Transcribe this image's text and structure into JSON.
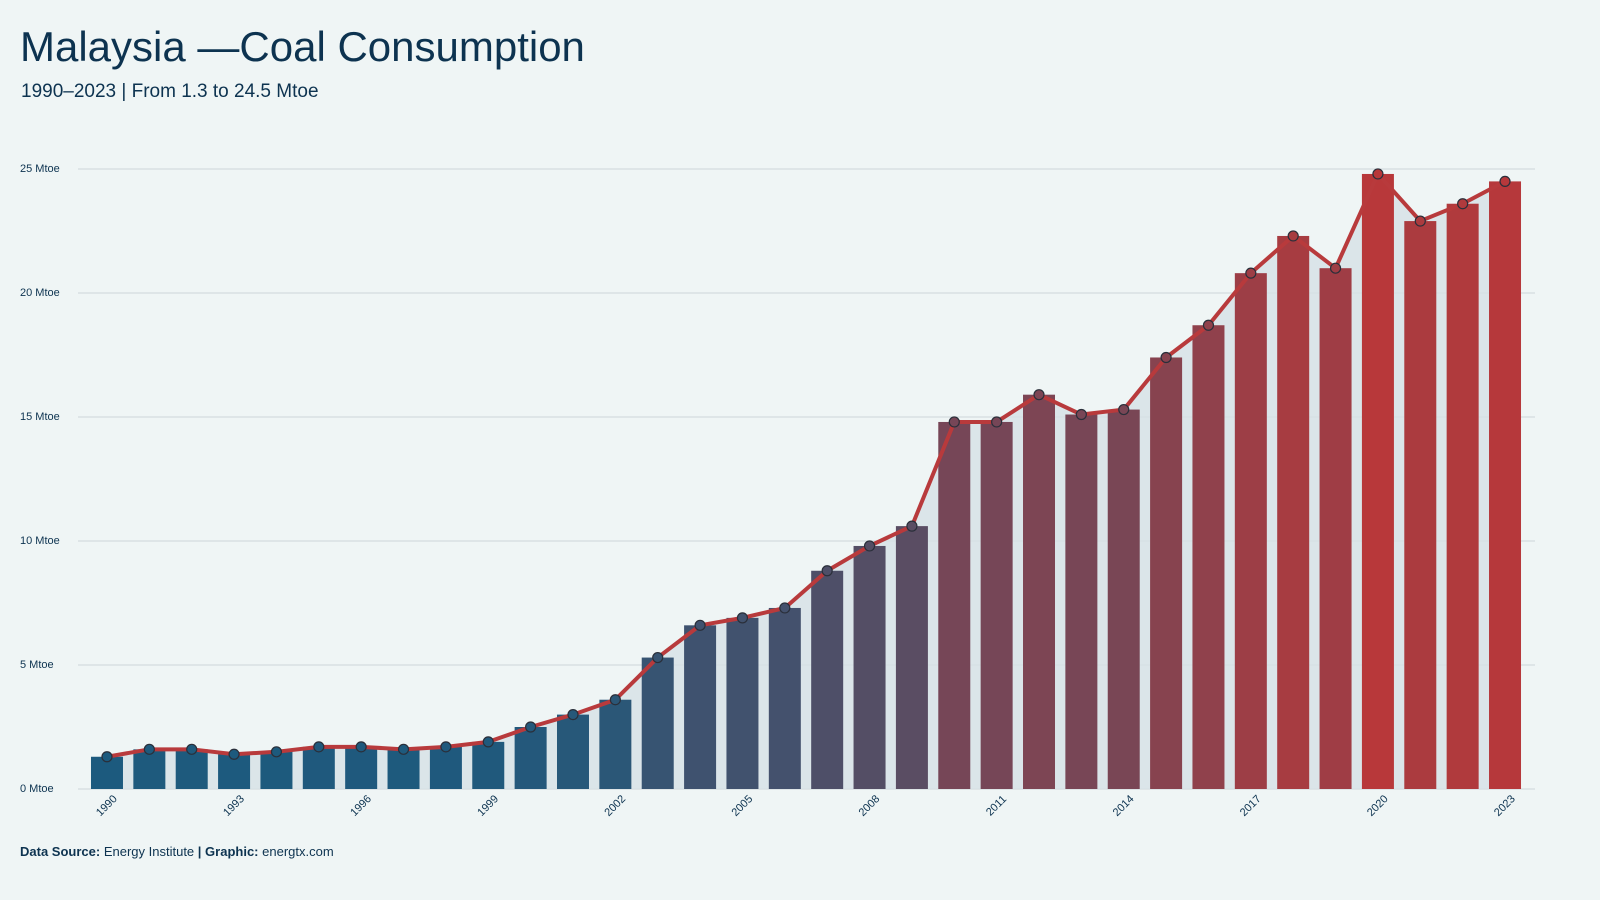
{
  "chart_data": {
    "type": "bar-line",
    "title": "Malaysia —Coal Consumption",
    "subtitle": "1990–2023 | From 1.3 to 24.5 Mtoe",
    "categories": [
      "1990",
      null,
      null,
      "1993",
      null,
      null,
      "1996",
      null,
      null,
      "1999",
      null,
      null,
      "2002",
      null,
      null,
      "2005",
      null,
      null,
      "2008",
      null,
      null,
      "2011",
      null,
      null,
      "2014",
      null,
      null,
      "2017",
      null,
      null,
      "2020",
      null,
      null,
      "2023"
    ],
    "values": [
      1.3,
      1.6,
      1.6,
      1.4,
      1.5,
      1.7,
      1.7,
      1.6,
      1.7,
      1.9,
      2.5,
      3.0,
      3.6,
      5.3,
      6.6,
      6.9,
      7.3,
      8.8,
      9.8,
      10.6,
      14.8,
      14.8,
      15.9,
      15.1,
      15.3,
      17.4,
      18.7,
      20.8,
      22.3,
      21.0,
      24.8,
      22.9,
      23.6,
      24.5
    ],
    "color_low": "#1c5a7e",
    "color_high": "#b8383a",
    "line_color": "#b83a3c",
    "ylim": [
      0,
      25
    ],
    "yticks": [
      {
        "value": 0,
        "label": "0 Mtoe"
      },
      {
        "value": 5,
        "label": "5 Mtoe"
      },
      {
        "value": 10,
        "label": "10 Mtoe"
      },
      {
        "value": 15,
        "label": "15 Mtoe"
      },
      {
        "value": 20,
        "label": "20 Mtoe"
      },
      {
        "value": 25,
        "label": "25 Mtoe"
      }
    ],
    "grid": true,
    "footer": {
      "source_label": "Data Source:",
      "source": "Energy Institute",
      "separator": "|",
      "graphic_label": "Graphic:",
      "graphic": "energtx.com"
    }
  }
}
